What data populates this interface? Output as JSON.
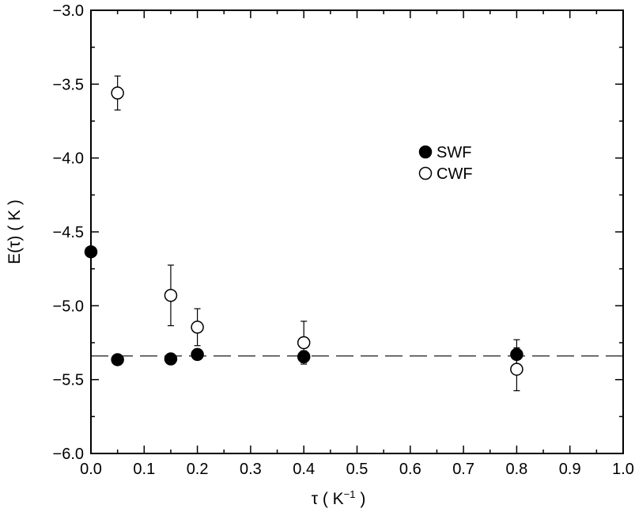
{
  "chart_data": {
    "type": "scatter",
    "title": "",
    "xlabel": "τ  ( K",
    "xlabel_sup": "−1",
    "xlabel_end": " )",
    "ylabel": "E(τ)  ( K )",
    "xlim": [
      0.0,
      1.0
    ],
    "ylim": [
      -6.0,
      -3.0
    ],
    "x_ticks": [
      0.0,
      0.1,
      0.2,
      0.3,
      0.4,
      0.5,
      0.6,
      0.7,
      0.8,
      0.9,
      1.0
    ],
    "x_tick_labels": [
      "0.0",
      "0.1",
      "0.2",
      "0.3",
      "0.4",
      "0.5",
      "0.6",
      "0.7",
      "0.8",
      "0.9",
      "1.0"
    ],
    "y_ticks": [
      -6.0,
      -5.5,
      -5.0,
      -4.5,
      -4.0,
      -3.5,
      -3.0
    ],
    "y_tick_labels": [
      "−6.0",
      "−5.5",
      "−5.0",
      "−4.5",
      "−4.0",
      "−3.5",
      "−3.0"
    ],
    "grid": false,
    "legend_position": "upper-right",
    "reference_line": {
      "y": -5.34,
      "style": "dashed"
    },
    "series": [
      {
        "name": "SWF",
        "marker": "filled-circle",
        "points": [
          {
            "x": 0.0,
            "y": -4.635,
            "err": 0
          },
          {
            "x": 0.05,
            "y": -5.365,
            "err": 0
          },
          {
            "x": 0.15,
            "y": -5.36,
            "err": 0
          },
          {
            "x": 0.2,
            "y": -5.33,
            "err": 0
          },
          {
            "x": 0.4,
            "y": -5.345,
            "err": 0.04
          },
          {
            "x": 0.8,
            "y": -5.33,
            "err": 0.1
          }
        ]
      },
      {
        "name": "CWF",
        "marker": "open-circle",
        "points": [
          {
            "x": 0.05,
            "y": -3.56,
            "err": 0.115
          },
          {
            "x": 0.15,
            "y": -4.93,
            "err": 0.205
          },
          {
            "x": 0.2,
            "y": -5.145,
            "err": 0.125
          },
          {
            "x": 0.4,
            "y": -5.25,
            "err": 0.145
          },
          {
            "x": 0.8,
            "y": -5.43,
            "err": 0.145
          }
        ]
      }
    ]
  }
}
